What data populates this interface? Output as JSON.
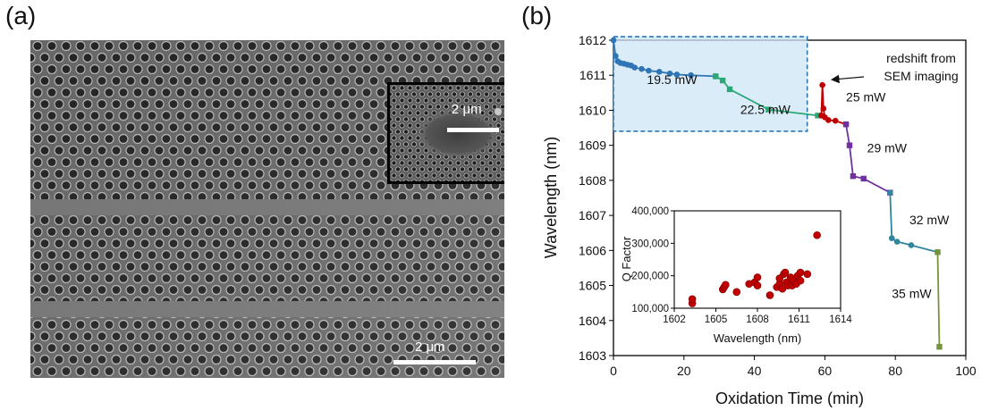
{
  "panel_a": {
    "label": "(a)",
    "main_scale_label": "2 μm",
    "inset_scale_label": "2 μm"
  },
  "panel_b": {
    "label": "(b)"
  },
  "chart_data": {
    "type": "line",
    "xlabel": "Oxidation Time (min)",
    "ylabel": "Wavelength (nm)",
    "xlim": [
      0,
      100
    ],
    "ylim": [
      1603,
      1612
    ],
    "xticks": [
      "0",
      "20",
      "40",
      "60",
      "80",
      "100"
    ],
    "yticks": [
      "1603",
      "1604",
      "1605",
      "1606",
      "1607",
      "1608",
      "1609",
      "1610",
      "1611",
      "1612"
    ],
    "highlight_box": {
      "x_range": [
        0,
        55
      ],
      "y_range": [
        1609.4,
        1612.1
      ]
    },
    "series": [
      {
        "name": "19.5 mW",
        "color": "#2f75b5",
        "marker": "circle",
        "x": [
          0,
          0.6,
          1.2,
          2,
          3,
          4,
          5,
          6,
          8,
          10,
          13,
          16,
          18,
          22,
          29
        ],
        "y": [
          1612,
          1611.55,
          1611.4,
          1611.35,
          1611.33,
          1611.3,
          1611.28,
          1611.22,
          1611.18,
          1611.13,
          1611.1,
          1611.05,
          1611.02,
          1611,
          1610.97
        ]
      },
      {
        "name": "22.5 mW",
        "color": "#2aa876",
        "marker": "square",
        "x": [
          29,
          31,
          33,
          44,
          58
        ],
        "y": [
          1610.97,
          1610.85,
          1610.6,
          1610.02,
          1609.85
        ]
      },
      {
        "name": "25 mW",
        "color": "#c00000",
        "marker": "circle",
        "x": [
          59,
          59.3,
          59.6,
          60,
          61,
          63,
          66
        ],
        "y": [
          1609.85,
          1610.72,
          1610.05,
          1609.8,
          1609.72,
          1609.7,
          1609.6
        ]
      },
      {
        "name": "29 mW",
        "color": "#7030a0",
        "marker": "square",
        "x": [
          66,
          67,
          68,
          71,
          78.5
        ],
        "y": [
          1609.6,
          1609,
          1608.12,
          1608.05,
          1607.65
        ]
      },
      {
        "name": "32 mW",
        "color": "#31859c",
        "marker": "circle",
        "x": [
          78.5,
          79,
          80.5,
          84.5,
          92
        ],
        "y": [
          1607.65,
          1606.35,
          1606.25,
          1606.15,
          1605.95
        ]
      },
      {
        "name": "35 mW",
        "color": "#77933c",
        "marker": "square",
        "x": [
          92,
          92.5
        ],
        "y": [
          1605.95,
          1603.25
        ]
      }
    ],
    "annotations": [
      {
        "text": "19.5 mW",
        "x": 9.5,
        "y": 1610.75
      },
      {
        "text": "22.5 mW",
        "x": 36,
        "y": 1609.9
      },
      {
        "text": "25 mW",
        "x": 66,
        "y": 1610.25
      },
      {
        "text": "29 mW",
        "x": 72,
        "y": 1608.8
      },
      {
        "text": "32 mW",
        "x": 84,
        "y": 1606.75
      },
      {
        "text": "35 mW",
        "x": 79,
        "y": 1604.65
      }
    ],
    "callout": {
      "line1": "redshift from",
      "line2": "SEM imaging",
      "x": 61,
      "y": 1610.8
    },
    "inset": {
      "type": "scatter",
      "xlabel": "Wavelength (nm)",
      "ylabel": "Q Factor",
      "xlim": [
        1602,
        1614
      ],
      "ylim": [
        100000,
        400000
      ],
      "xticks": [
        "1602",
        "1605",
        "1608",
        "1611",
        "1614"
      ],
      "yticks": [
        "100,000",
        "200,000",
        "300,000",
        "400,000"
      ],
      "color": "#c00000",
      "x": [
        1603.3,
        1603.3,
        1605.5,
        1605.6,
        1605.7,
        1606.5,
        1607.4,
        1607.8,
        1608.0,
        1608.0,
        1608.9,
        1609.4,
        1609.6,
        1609.6,
        1609.8,
        1609.9,
        1610.0,
        1610.1,
        1610.2,
        1610.4,
        1610.5,
        1610.6,
        1610.8,
        1610.9,
        1611.1,
        1611.1,
        1611.6,
        1612.3
      ],
      "y": [
        115000,
        128000,
        158000,
        165000,
        172000,
        150000,
        175000,
        180000,
        170000,
        195000,
        140000,
        165000,
        175000,
        192000,
        160000,
        205000,
        210000,
        180000,
        170000,
        195000,
        170000,
        185000,
        175000,
        200000,
        185000,
        210000,
        205000,
        325000
      ]
    }
  }
}
